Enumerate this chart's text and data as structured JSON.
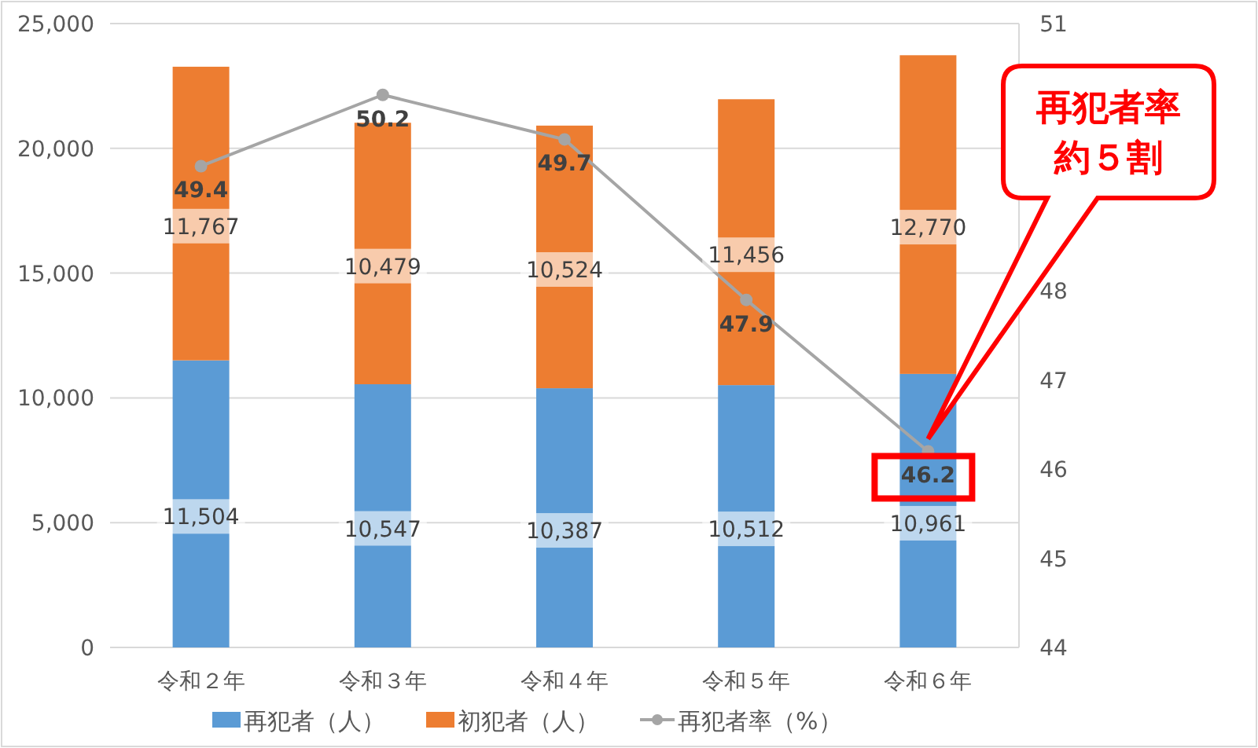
{
  "chart_data": {
    "type": "bar",
    "stacked": true,
    "categories": [
      "令和２年",
      "令和３年",
      "令和４年",
      "令和５年",
      "令和６年"
    ],
    "series": [
      {
        "name": "再犯者（人）",
        "color": "#5b9bd5",
        "values": [
          11504,
          10547,
          10387,
          10512,
          10961
        ],
        "value_labels": [
          "11,504",
          "10,547",
          "10,387",
          "10,512",
          "10,961"
        ]
      },
      {
        "name": "初犯者（人）",
        "color": "#ed7d31",
        "values": [
          11767,
          10479,
          10524,
          11456,
          12770
        ],
        "value_labels": [
          "11,767",
          "10,479",
          "10,524",
          "11,456",
          "12,770"
        ]
      },
      {
        "name": "再犯者率（%）",
        "type": "line",
        "axis": "y2",
        "color": "#a5a5a5",
        "marker": "circle",
        "values": [
          49.4,
          50.2,
          49.7,
          47.9,
          46.2
        ]
      }
    ],
    "ylim": [
      0,
      25000
    ],
    "yticks": [
      {
        "value": 0,
        "label": "0"
      },
      {
        "value": 5000,
        "label": "5,000"
      },
      {
        "value": 10000,
        "label": "10,000"
      },
      {
        "value": 15000,
        "label": "15,000"
      },
      {
        "value": 20000,
        "label": "20,000"
      },
      {
        "value": 25000,
        "label": "25,000"
      }
    ],
    "y2lim": [
      44,
      51
    ],
    "y2ticks": [
      44,
      45,
      46,
      47,
      48,
      51
    ],
    "grid": "y",
    "legend": "bottom",
    "data_labels": true,
    "annotations": [
      "再犯者率",
      "約５割"
    ]
  }
}
